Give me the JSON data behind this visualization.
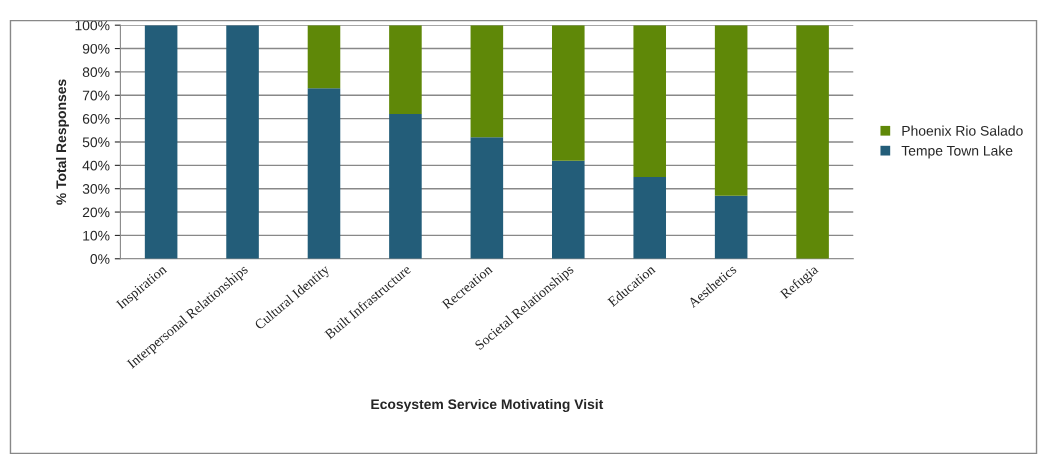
{
  "chart_data": {
    "type": "bar",
    "stacked": true,
    "xlabel": "Ecosystem Service Motivating Visit",
    "ylabel": "% Total Responses",
    "categories": [
      "Inspiration",
      "Interpersonal Relationships",
      "Cultural Identity",
      "Built Infrastructure",
      "Recreation",
      "Societal Relationships",
      "Education",
      "Aesthetics",
      "Refugia"
    ],
    "series": [
      {
        "name": "Tempe Town Lake",
        "color": "#235d79",
        "values": [
          100,
          100,
          73,
          62,
          52,
          42,
          35,
          27,
          0
        ]
      },
      {
        "name": "Phoenix Rio Salado",
        "color": "#5f8808",
        "values": [
          0,
          0,
          27,
          38,
          48,
          58,
          65,
          73,
          100
        ]
      }
    ],
    "ylim": [
      0,
      100
    ],
    "yticks": [
      {
        "value": 0,
        "label": "0%"
      },
      {
        "value": 10,
        "label": "10%"
      },
      {
        "value": 20,
        "label": "20%"
      },
      {
        "value": 30,
        "label": "30%"
      },
      {
        "value": 40,
        "label": "40%"
      },
      {
        "value": 50,
        "label": "50%"
      },
      {
        "value": 60,
        "label": "60%"
      },
      {
        "value": 70,
        "label": "70%"
      },
      {
        "value": 80,
        "label": "80%"
      },
      {
        "value": 90,
        "label": "90%"
      },
      {
        "value": 100,
        "label": "100%"
      }
    ],
    "grid": "y",
    "legend": "right"
  }
}
